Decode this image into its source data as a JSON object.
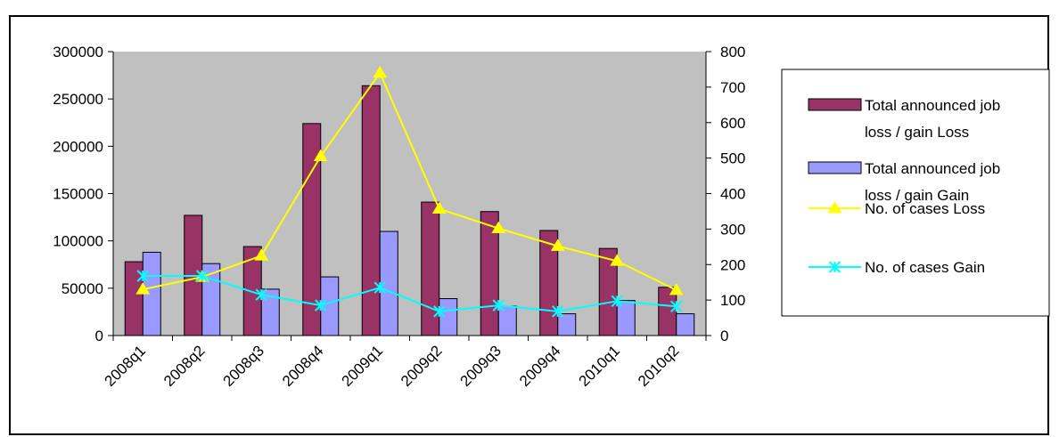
{
  "chart_data": {
    "type": "bar",
    "title": "",
    "xlabel": "",
    "ylabel": "",
    "categories": [
      "2008q1",
      "2008q2",
      "2008q3",
      "2008q4",
      "2009q1",
      "2009q2",
      "2009q3",
      "2009q4",
      "2010q1",
      "2010q2"
    ],
    "y_left": {
      "range": [
        0,
        300000
      ],
      "ticks": [
        0,
        50000,
        100000,
        150000,
        200000,
        250000,
        300000
      ]
    },
    "y_right": {
      "range": [
        0,
        800
      ],
      "ticks": [
        0,
        100,
        200,
        300,
        400,
        500,
        600,
        700,
        800
      ]
    },
    "series": [
      {
        "name": "Total announced job loss / gain Loss",
        "kind": "bar",
        "axis": "left",
        "color": "#993366",
        "values": [
          78000,
          127000,
          94000,
          224000,
          264000,
          141000,
          131000,
          111000,
          92000,
          51000
        ]
      },
      {
        "name": "Total announced job loss / gain Gain",
        "kind": "bar",
        "axis": "left",
        "color": "#9999ff",
        "values": [
          88000,
          76000,
          49000,
          62000,
          110000,
          39000,
          31000,
          23000,
          37000,
          23000
        ]
      },
      {
        "name": "No. of cases Loss",
        "kind": "line",
        "axis": "right",
        "color": "#ffff00",
        "marker": "triangle",
        "values": [
          130,
          165,
          225,
          505,
          740,
          357,
          302,
          252,
          210,
          128
        ]
      },
      {
        "name": "No. of cases Gain",
        "kind": "line",
        "axis": "right",
        "color": "#00ffff",
        "marker": "x",
        "values": [
          168,
          168,
          115,
          85,
          135,
          68,
          85,
          68,
          97,
          82
        ]
      }
    ],
    "legend": {
      "position": "right",
      "entries": [
        {
          "lines": [
            "Total announced job",
            "loss / gain Loss"
          ]
        },
        {
          "lines": [
            "Total announced job",
            "loss / gain Gain"
          ]
        },
        {
          "lines": [
            "No. of cases Loss"
          ]
        },
        {
          "lines": [
            "No. of cases Gain"
          ]
        }
      ]
    },
    "plot_background": "#c0c0c0",
    "grid": false
  }
}
